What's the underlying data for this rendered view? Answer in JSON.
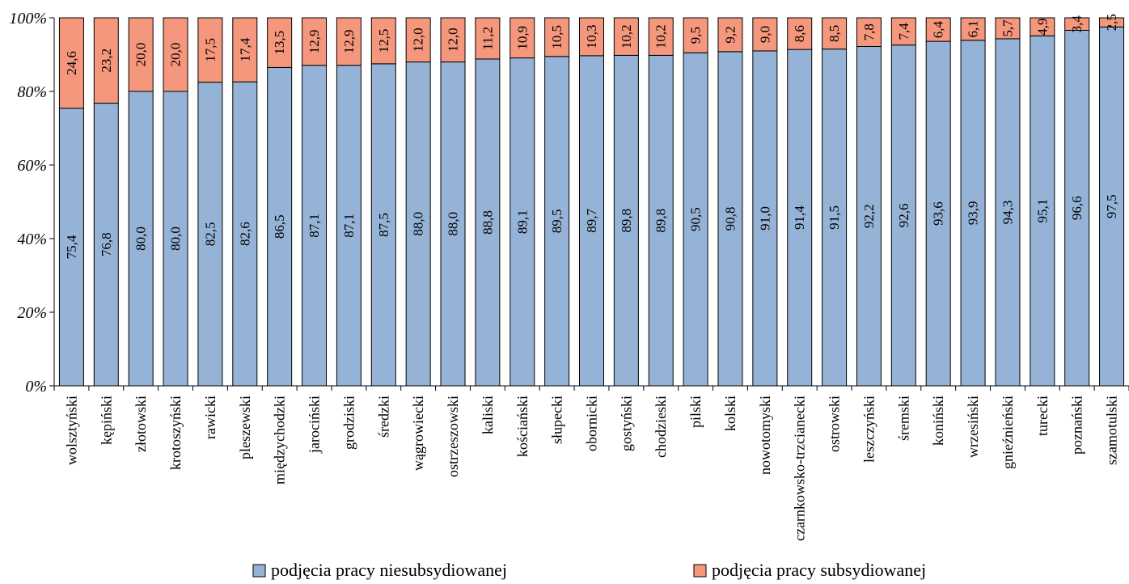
{
  "chart_data": {
    "type": "bar",
    "stacked": true,
    "percent": true,
    "ylim": [
      0,
      100
    ],
    "yticks": [
      "0%",
      "20%",
      "40%",
      "60%",
      "80%",
      "100%"
    ],
    "grid": false,
    "legend_position": "bottom",
    "categories": [
      "wolsztyński",
      "kępiński",
      "złotowski",
      "krotoszyński",
      "rawicki",
      "pleszewski",
      "międzychodzki",
      "jarociński",
      "grodziski",
      "średzki",
      "wągrowiecki",
      "ostrzeszowski",
      "kaliski",
      "kościański",
      "słupecki",
      "obornicki",
      "gostyński",
      "chodzieski",
      "pilski",
      "kolski",
      "nowotomyski",
      "czarnkowsko-trzcianecki",
      "ostrowski",
      "leszczyński",
      "śremski",
      "koniński",
      "wrzesiński",
      "gnieźnieński",
      "turecki",
      "poznański",
      "szamotulski"
    ],
    "series": [
      {
        "name": "podjęcia pracy niesubsydiowanej",
        "color": "#95b3d7",
        "values": [
          75.4,
          76.8,
          80.0,
          80.0,
          82.5,
          82.6,
          86.5,
          87.1,
          87.1,
          87.5,
          88.0,
          88.0,
          88.8,
          89.1,
          89.5,
          89.7,
          89.8,
          89.8,
          90.5,
          90.8,
          91.0,
          91.4,
          91.5,
          92.2,
          92.6,
          93.6,
          93.9,
          94.3,
          95.1,
          96.6,
          97.5
        ],
        "labels": [
          "75,4",
          "76,8",
          "80,0",
          "80,0",
          "82,5",
          "82,6",
          "86,5",
          "87,1",
          "87,1",
          "87,5",
          "88,0",
          "88,0",
          "88,8",
          "89,1",
          "89,5",
          "89,7",
          "89,8",
          "89,8",
          "90,5",
          "90,8",
          "91,0",
          "91,4",
          "91,5",
          "92,2",
          "92,6",
          "93,6",
          "93,9",
          "94,3",
          "95,1",
          "96,6",
          "97,5"
        ]
      },
      {
        "name": "podjęcia pracy subsydiowanej",
        "color": "#f4977c",
        "values": [
          24.6,
          23.2,
          20.0,
          20.0,
          17.5,
          17.4,
          13.5,
          12.9,
          12.9,
          12.5,
          12.0,
          12.0,
          11.2,
          10.9,
          10.5,
          10.3,
          10.2,
          10.2,
          9.5,
          9.2,
          9.0,
          8.6,
          8.5,
          7.8,
          7.4,
          6.4,
          6.1,
          5.7,
          4.9,
          3.4,
          2.5
        ],
        "labels": [
          "24,6",
          "23,2",
          "20,0",
          "20,0",
          "17,5",
          "17,4",
          "13,5",
          "12,9",
          "12,9",
          "12,5",
          "12,0",
          "12,0",
          "11,2",
          "10,9",
          "10,5",
          "10,3",
          "10,2",
          "10,2",
          "9,5",
          "9,2",
          "9,0",
          "8,6",
          "8,5",
          "7,8",
          "7,4",
          "6,4",
          "6,1",
          "5,7",
          "4,9",
          "3,4",
          "2,5"
        ]
      }
    ]
  }
}
